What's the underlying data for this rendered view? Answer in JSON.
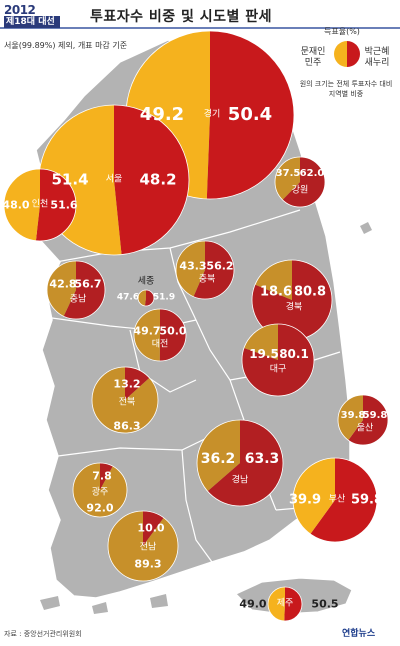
{
  "header": {
    "badge_year": "2012",
    "badge_sub": "제18대 대선",
    "title": "투표자수 비중 및 시도별 판세",
    "subtitle": "서울(99.89%) 제외, 개표 마감 기준"
  },
  "legend": {
    "title": "득표율(%)",
    "left_label": "문재인 민주",
    "right_label": "박근혜 새누리",
    "note": "원의 크기는 전체 투표자수 대비 지역별 비중",
    "moon_color": "#f5b21e",
    "park_color": "#c8191c"
  },
  "source": "자료 : 중앙선거관리위원회",
  "agency": "연합뉴스",
  "colors": {
    "map_land": "#b3b3b3",
    "map_border": "#ffffff",
    "moon": "#f5b21e",
    "park": "#c8191c",
    "moon_dark": "#c7902a",
    "park_dark": "#b21f22"
  },
  "regions": [
    {
      "name": "경기",
      "moon": 49.2,
      "park": 50.4
    },
    {
      "name": "서울",
      "moon": 51.4,
      "park": 48.2
    },
    {
      "name": "인천",
      "moon": 48.0,
      "park": 51.6
    },
    {
      "name": "강원",
      "moon": 37.5,
      "park": 62.0
    },
    {
      "name": "충북",
      "moon": 43.3,
      "park": 56.2
    },
    {
      "name": "충남",
      "moon": 42.8,
      "park": 56.7
    },
    {
      "name": "세종",
      "moon": 47.6,
      "park": 51.9
    },
    {
      "name": "대전",
      "moon": 49.7,
      "park": 50.0
    },
    {
      "name": "경북",
      "moon": 18.6,
      "park": 80.8
    },
    {
      "name": "전북",
      "moon": 86.3,
      "park": 13.2
    },
    {
      "name": "대구",
      "moon": 19.5,
      "park": 80.1
    },
    {
      "name": "울산",
      "moon": 39.8,
      "park": 59.8
    },
    {
      "name": "경남",
      "moon": 36.2,
      "park": 63.3
    },
    {
      "name": "광주",
      "moon": 92.0,
      "park": 7.8
    },
    {
      "name": "부산",
      "moon": 39.9,
      "park": 59.8
    },
    {
      "name": "전남",
      "moon": 89.3,
      "park": 10.0
    },
    {
      "name": "제주",
      "moon": 49.0,
      "park": 50.5
    }
  ]
}
